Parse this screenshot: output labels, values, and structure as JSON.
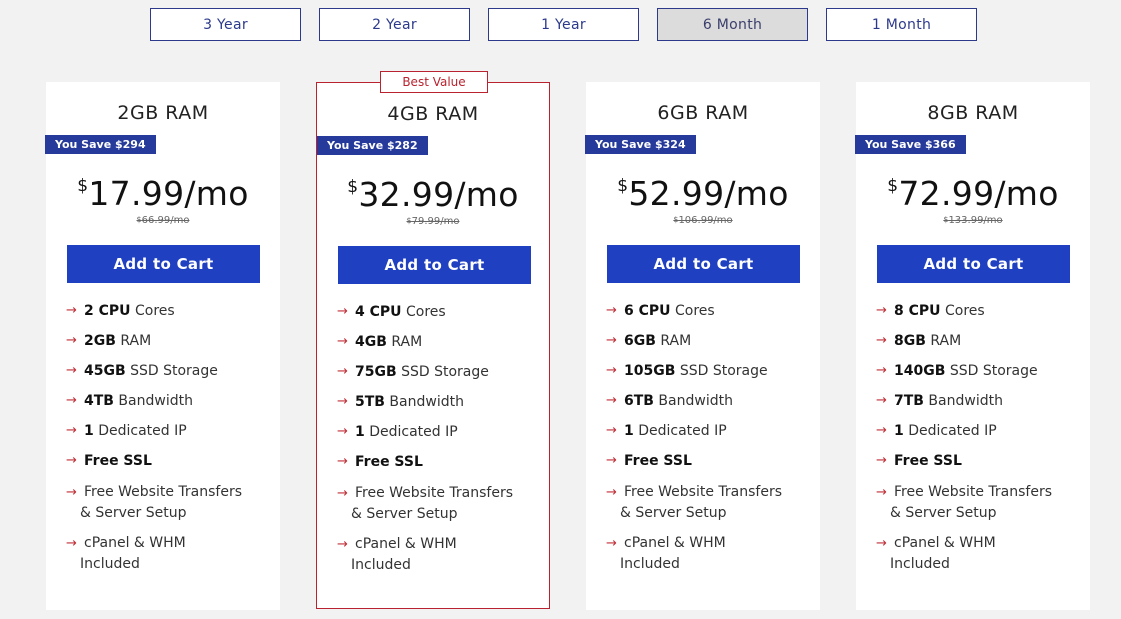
{
  "terms": [
    "3 Year",
    "2 Year",
    "1 Year",
    "6 Month",
    "1 Month"
  ],
  "active_term": "6 Month",
  "best_value_label": "Best Value",
  "currency": "$",
  "per": "/mo",
  "cart_label": "Add to Cart",
  "colors": {
    "accent": "#2040c2",
    "badge": "#253a9a",
    "highlight": "#b8232f"
  },
  "plans": [
    {
      "title": "2GB RAM",
      "save": "You Save $294",
      "price": "17.99",
      "old_price": "66.99/mo",
      "cpu": "2 CPU",
      "cpu_suffix": "Cores",
      "ram": "2GB",
      "ram_suffix": "RAM",
      "storage": "45GB",
      "storage_suffix": "SSD Storage",
      "bandwidth": "4TB",
      "bandwidth_suffix": "Bandwidth",
      "ip": "1",
      "ip_suffix": "Dedicated IP",
      "ssl": "Free SSL",
      "transfer_1": "Free Website Transfers",
      "transfer_2": "& Server Setup",
      "cpanel_1": "cPanel & WHM",
      "cpanel_2": "Included"
    },
    {
      "title": "4GB RAM",
      "save": "You Save $282",
      "price": "32.99",
      "old_price": "79.99/mo",
      "cpu": "4 CPU",
      "cpu_suffix": "Cores",
      "ram": "4GB",
      "ram_suffix": "RAM",
      "storage": "75GB",
      "storage_suffix": "SSD Storage",
      "bandwidth": "5TB",
      "bandwidth_suffix": "Bandwidth",
      "ip": "1",
      "ip_suffix": "Dedicated IP",
      "ssl": "Free SSL",
      "transfer_1": "Free Website Transfers",
      "transfer_2": "& Server Setup",
      "cpanel_1": "cPanel & WHM",
      "cpanel_2": "Included"
    },
    {
      "title": "6GB RAM",
      "save": "You Save $324",
      "price": "52.99",
      "old_price": "106.99/mo",
      "cpu": "6 CPU",
      "cpu_suffix": "Cores",
      "ram": "6GB",
      "ram_suffix": "RAM",
      "storage": "105GB",
      "storage_suffix": "SSD Storage",
      "bandwidth": "6TB",
      "bandwidth_suffix": "Bandwidth",
      "ip": "1",
      "ip_suffix": "Dedicated IP",
      "ssl": "Free SSL",
      "transfer_1": "Free Website Transfers",
      "transfer_2": "& Server Setup",
      "cpanel_1": "cPanel & WHM",
      "cpanel_2": "Included"
    },
    {
      "title": "8GB RAM",
      "save": "You Save $366",
      "price": "72.99",
      "old_price": "133.99/mo",
      "cpu": "8 CPU",
      "cpu_suffix": "Cores",
      "ram": "8GB",
      "ram_suffix": "RAM",
      "storage": "140GB",
      "storage_suffix": "SSD Storage",
      "bandwidth": "7TB",
      "bandwidth_suffix": "Bandwidth",
      "ip": "1",
      "ip_suffix": "Dedicated IP",
      "ssl": "Free SSL",
      "transfer_1": "Free Website Transfers",
      "transfer_2": "& Server Setup",
      "cpanel_1": "cPanel & WHM",
      "cpanel_2": "Included"
    }
  ]
}
